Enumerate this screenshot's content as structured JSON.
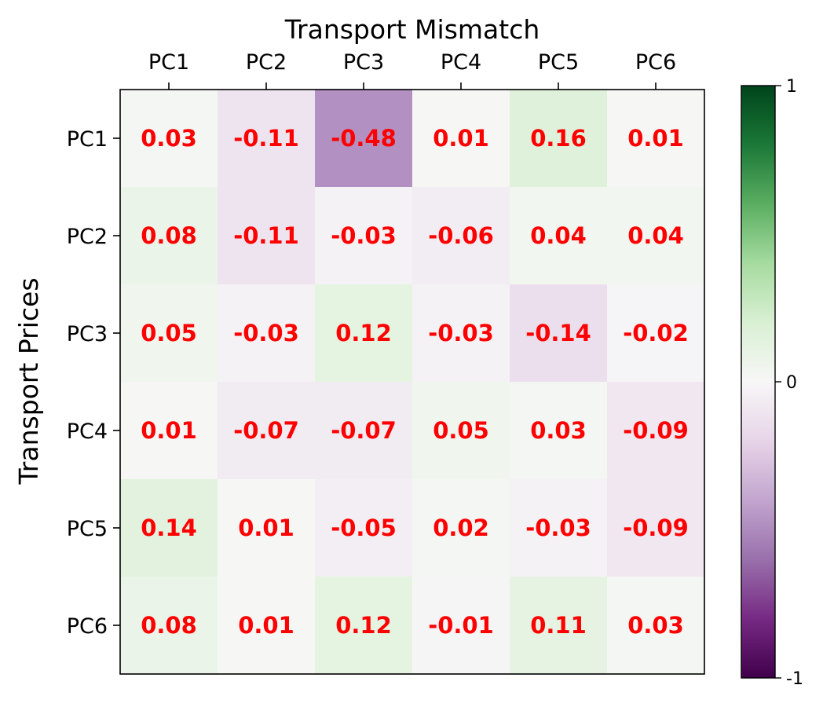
{
  "chart_data": {
    "type": "heatmap",
    "title": "Transport Mismatch",
    "xlabel": "",
    "ylabel": "Transport Prices",
    "x_categories": [
      "PC1",
      "PC2",
      "PC3",
      "PC4",
      "PC5",
      "PC6"
    ],
    "y_categories": [
      "PC1",
      "PC2",
      "PC3",
      "PC4",
      "PC5",
      "PC6"
    ],
    "values": [
      [
        0.03,
        -0.11,
        -0.48,
        0.01,
        0.16,
        0.01
      ],
      [
        0.08,
        -0.11,
        -0.03,
        -0.06,
        0.04,
        0.04
      ],
      [
        0.05,
        -0.03,
        0.12,
        -0.03,
        -0.14,
        -0.02
      ],
      [
        0.01,
        -0.07,
        -0.07,
        0.05,
        0.03,
        -0.09
      ],
      [
        0.14,
        0.01,
        -0.05,
        0.02,
        -0.03,
        -0.09
      ],
      [
        0.08,
        0.01,
        0.12,
        -0.01,
        0.11,
        0.03
      ]
    ],
    "labels": [
      [
        "0.03",
        "-0.11",
        "-0.48",
        "0.01",
        "0.16",
        "0.01"
      ],
      [
        "0.08",
        "-0.11",
        "-0.03",
        "-0.06",
        "0.04",
        "0.04"
      ],
      [
        "0.05",
        "-0.03",
        "0.12",
        "-0.03",
        "-0.14",
        "-0.02"
      ],
      [
        "0.01",
        "-0.07",
        "-0.07",
        "0.05",
        "0.03",
        "-0.09"
      ],
      [
        "0.14",
        "0.01",
        "-0.05",
        "0.02",
        "-0.03",
        "-0.09"
      ],
      [
        "0.08",
        "0.01",
        "0.12",
        "-0.01",
        "0.11",
        "0.03"
      ]
    ],
    "value_range": [
      -1,
      1
    ],
    "colormap": "PRGn",
    "colorbar": {
      "ticks": [
        1,
        0,
        -1
      ],
      "tick_labels": [
        "1",
        "0",
        "-1"
      ]
    },
    "x_tick_position": "top",
    "annotation_color": "#ff0000",
    "grid": false
  }
}
